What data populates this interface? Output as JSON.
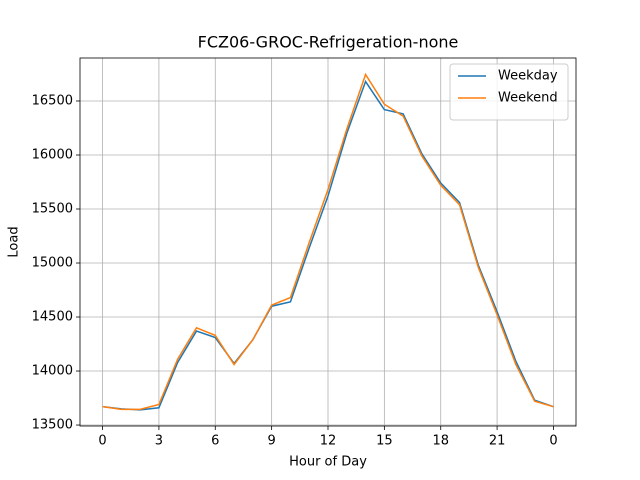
{
  "chart_data": {
    "type": "line",
    "title": "FCZ06-GROC-Refrigeration-none",
    "x_label": "Hour of Day",
    "y_label": "Load",
    "x": [
      0,
      1,
      2,
      3,
      4,
      5,
      6,
      7,
      8,
      9,
      10,
      11,
      12,
      13,
      14,
      15,
      16,
      17,
      18,
      19,
      20,
      21,
      22,
      23,
      24
    ],
    "series": [
      {
        "name": "Weekday",
        "color": "#1f77b4",
        "values": [
          13670,
          13650,
          13640,
          13660,
          14080,
          14370,
          14310,
          14070,
          14290,
          14600,
          14640,
          15140,
          15620,
          16200,
          16680,
          16420,
          16380,
          16010,
          15740,
          15560,
          14980,
          14550,
          14090,
          13730,
          13670
        ]
      },
      {
        "name": "Weekend",
        "color": "#ff7f0e",
        "values": [
          13670,
          13645,
          13645,
          13690,
          14110,
          14400,
          14330,
          14060,
          14290,
          14610,
          14680,
          15190,
          15680,
          16240,
          16745,
          16470,
          16360,
          15990,
          15720,
          15540,
          14960,
          14520,
          14060,
          13720,
          13670
        ]
      }
    ],
    "xlim": [
      -1.2,
      25.2
    ],
    "ylim": [
      13491,
      16898
    ],
    "xticks": [
      0,
      3,
      6,
      9,
      12,
      15,
      18,
      21,
      {
        "value": 24,
        "label": "0"
      }
    ],
    "yticks": [
      13500,
      14000,
      14500,
      15000,
      15500,
      16000,
      16500
    ],
    "grid": true,
    "legend": "upper right"
  }
}
